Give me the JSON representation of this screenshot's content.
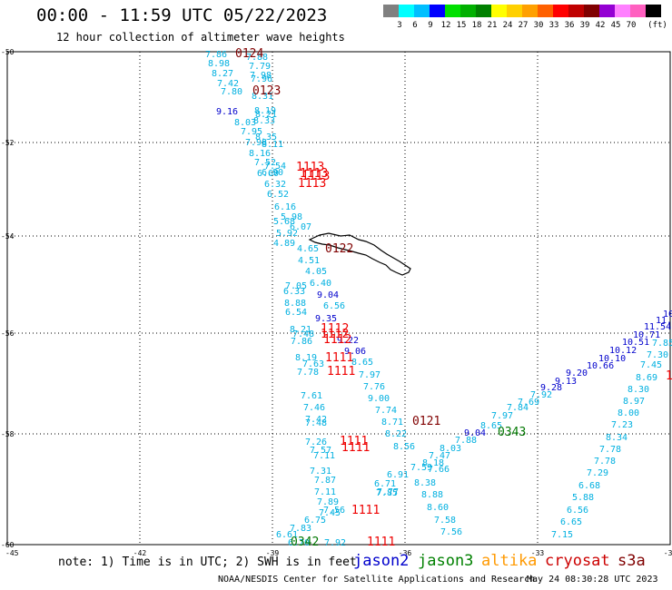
{
  "title": "00:00 - 11:59 UTC 05/22/2023",
  "subtitle": "12 hour collection of altimeter wave heights",
  "legend": {
    "unit": "(ft)",
    "colors": [
      "#808080",
      "#00ffff",
      "#00bfff",
      "#0000ff",
      "#00e000",
      "#00b000",
      "#008000",
      "#ffff00",
      "#ffd000",
      "#ffa000",
      "#ff6000",
      "#ff0000",
      "#c00000",
      "#800000",
      "#9400d3",
      "#ff80ff",
      "#ff60c0",
      "#000000"
    ],
    "labels": [
      "3",
      "6",
      "9",
      "12",
      "15",
      "18",
      "21",
      "24",
      "27",
      "30",
      "33",
      "36",
      "39",
      "42",
      "45",
      "70"
    ]
  },
  "note": "note: 1) Time is in UTC; 2) SWH is in feet",
  "satellites": [
    {
      "name": "jason2",
      "color": "#0000cc"
    },
    {
      "name": "jason3",
      "color": "#008000"
    },
    {
      "name": "altika",
      "color": "#ff9900"
    },
    {
      "name": "cryosat",
      "color": "#cc0000"
    },
    {
      "name": "s3a",
      "color": "#800000"
    }
  ],
  "credit": "NOAA/NESDIS Center for Satellite Applications and Research",
  "timestamp": "May 24 08:30:28 UTC 2023",
  "map": {
    "lat_labels": [
      "-50",
      "-52",
      "-54",
      "-56",
      "-58",
      "-60"
    ],
    "lon_labels": [
      "-45",
      "-42",
      "-39",
      "-36",
      "-33",
      "-30"
    ],
    "colors": {
      "cyan": "#00b0e0",
      "blue": "#0000cc",
      "red": "#ee0000",
      "maroon": "#800000",
      "green": "#007700"
    }
  },
  "observations": {
    "cyan1": {
      "color": "#00b0e0",
      "values": [
        "7.86",
        "7.88",
        "8.98",
        "7.79",
        "8.27",
        "7.98",
        "7.96",
        "7.42",
        "7.80",
        "8.31",
        "8.19",
        "8.21",
        "8.03",
        "8.33",
        "7.95",
        "8.35",
        "7.98",
        "8.11",
        "8.16",
        "7.52",
        "7.54",
        "6.90",
        "6.60",
        "6.32",
        "6.52",
        "6.16",
        "5.98",
        "5.68",
        "6.07",
        "5.92",
        "4.89",
        "4.65",
        "4.51",
        "4.05",
        "6.40",
        "7.05",
        "6.33",
        "6.56",
        "8.88",
        "6.54",
        "6.25"
      ]
    },
    "cyan2": {
      "color": "#00b0e0",
      "values": [
        "8.21",
        "7.48",
        "7.86",
        "8.19",
        "7.63",
        "7.78",
        "8.65",
        "7.97",
        "7.76",
        "7.61",
        "9.00",
        "7.46",
        "7.74",
        "7.42",
        "7.48",
        "8.71",
        "7.26",
        "8.22",
        "7.57",
        "8.56",
        "7.11",
        "7.31",
        "7.87",
        "7.11",
        "7.89",
        "7.56",
        "7.45",
        "6.75",
        "7.83",
        "6.61",
        "6.70",
        "7.92"
      ]
    },
    "cyan3": {
      "color": "#00b0e0",
      "values": [
        "8.03",
        "8.18",
        "7.59",
        "7.66",
        "7.47",
        "7.77",
        "6.71",
        "6.91",
        "8.38",
        "8.88",
        "8.60",
        "7.58",
        "7.56",
        "7.85"
      ]
    },
    "cyan4": {
      "color": "#00b0e0",
      "values": [
        "7.88",
        "8.65",
        "7.97",
        "7.84",
        "7.69",
        "7.92"
      ]
    },
    "cyan5": {
      "color": "#00b0e0",
      "values": [
        "7.85",
        "7.30",
        "7.45",
        "8.69",
        "8.30",
        "8.97",
        "8.00",
        "7.23",
        "8.34",
        "7.78",
        "7.78",
        "7.29",
        "6.68",
        "5.88",
        "6.56",
        "6.65",
        "7.15"
      ]
    },
    "blue1": {
      "color": "#0000cc",
      "values": [
        "9.16",
        "9.04",
        "9.35",
        "9.22",
        "9.06"
      ]
    },
    "blue2": {
      "color": "#0000cc",
      "values": [
        "9.04",
        "9.28",
        "9.13",
        "9.20",
        "10.66",
        "10.10",
        "10.12",
        "10.51",
        "10.71",
        "11.54",
        "11.14",
        "10.00"
      ]
    },
    "red": {
      "color": "#ee0000",
      "values": [
        "1113",
        "1113",
        "1113",
        "1113",
        "1112",
        "1112",
        "1112",
        "1111",
        "1111",
        "1111",
        "1111",
        "1111"
      ]
    },
    "maroon": {
      "color": "#800000",
      "values": [
        "0124",
        "0123",
        "0122",
        "0121"
      ]
    },
    "green": {
      "color": "#007700",
      "values": [
        "0343",
        "0342"
      ]
    }
  }
}
